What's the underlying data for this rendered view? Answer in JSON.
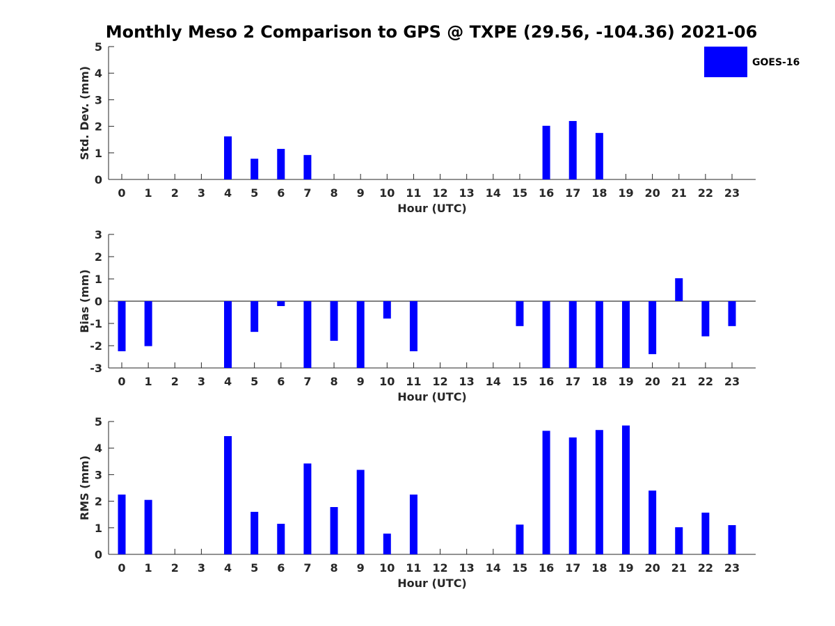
{
  "figure": {
    "title": "Monthly Meso 2 Comparison to GPS @ TXPE (29.56, -104.36) 2021-06",
    "legend": {
      "label": "GOES-16",
      "color": "#0000ff",
      "placement": "top-right"
    },
    "bar_color": "#0000ff"
  },
  "chart_data": [
    {
      "type": "bar",
      "xlabel": "Hour (UTC)",
      "ylabel": "Std. Dev. (mm)",
      "ylim": [
        0,
        5
      ],
      "yticks": [
        0,
        1,
        2,
        3,
        4,
        5
      ],
      "categories": [
        "0",
        "1",
        "2",
        "3",
        "4",
        "5",
        "6",
        "7",
        "8",
        "9",
        "10",
        "11",
        "12",
        "13",
        "14",
        "15",
        "16",
        "17",
        "18",
        "19",
        "20",
        "21",
        "22",
        "23"
      ],
      "series": [
        {
          "name": "GOES-16",
          "values": [
            0,
            0,
            0,
            0,
            1.62,
            0.78,
            1.15,
            0.92,
            0,
            0,
            0,
            0,
            0,
            0,
            0,
            0,
            2.02,
            2.2,
            1.75,
            0,
            0,
            0,
            0,
            0
          ]
        }
      ],
      "grid": false
    },
    {
      "type": "bar",
      "xlabel": "Hour (UTC)",
      "ylabel": "Bias (mm)",
      "ylim": [
        -3,
        3
      ],
      "yticks": [
        -3,
        -2,
        -1,
        0,
        1,
        2,
        3
      ],
      "categories": [
        "0",
        "1",
        "2",
        "3",
        "4",
        "5",
        "6",
        "7",
        "8",
        "9",
        "10",
        "11",
        "12",
        "13",
        "14",
        "15",
        "16",
        "17",
        "18",
        "19",
        "20",
        "21",
        "22",
        "23"
      ],
      "series": [
        {
          "name": "GOES-16",
          "values": [
            -2.25,
            -2.02,
            0,
            0,
            -3.0,
            -1.38,
            -0.22,
            -3.0,
            -1.78,
            -3.0,
            -0.78,
            -2.25,
            0,
            0,
            0,
            -1.12,
            -3.0,
            -3.0,
            -3.0,
            -3.0,
            -2.38,
            1.03,
            -1.58,
            -1.12
          ]
        }
      ],
      "grid": false
    },
    {
      "type": "bar",
      "xlabel": "Hour (UTC)",
      "ylabel": "RMS (mm)",
      "ylim": [
        0,
        5
      ],
      "yticks": [
        0,
        1,
        2,
        3,
        4,
        5
      ],
      "categories": [
        "0",
        "1",
        "2",
        "3",
        "4",
        "5",
        "6",
        "7",
        "8",
        "9",
        "10",
        "11",
        "12",
        "13",
        "14",
        "15",
        "16",
        "17",
        "18",
        "19",
        "20",
        "21",
        "22",
        "23"
      ],
      "series": [
        {
          "name": "GOES-16",
          "values": [
            2.25,
            2.05,
            0,
            0,
            4.45,
            1.6,
            1.15,
            3.42,
            1.78,
            3.18,
            0.78,
            2.25,
            0,
            0,
            0,
            1.12,
            4.65,
            4.4,
            4.68,
            4.85,
            2.4,
            1.02,
            1.57,
            1.1
          ]
        }
      ],
      "grid": false
    }
  ]
}
